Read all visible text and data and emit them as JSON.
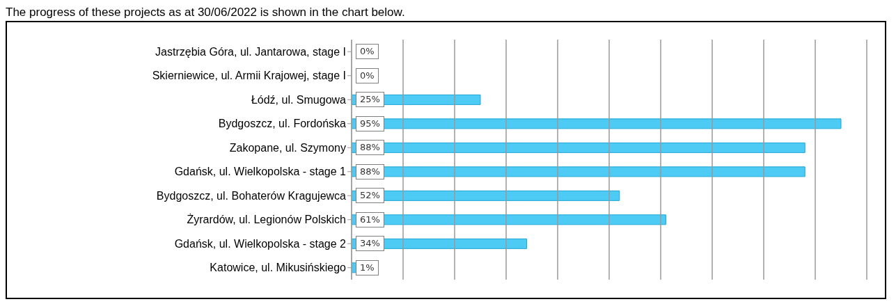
{
  "chart_data": {
    "type": "bar",
    "orientation": "horizontal",
    "title": "The progress of these projects as at 30/06/2022 is shown in the chart below.",
    "categories": [
      "Jastrzębia Góra, ul. Jantarowa, stage I",
      "Skierniewice, ul. Armii Krajowej, stage I",
      "Łódź, ul. Smugowa",
      "Bydgoszcz, ul. Fordońska",
      "Zakopane, ul. Szymony",
      "Gdańsk, ul. Wielkopolska - stage 1",
      "Bydgoszcz, ul. Bohaterów Kragujewca",
      "Żyrardów, ul. Legionów Polskich",
      "Gdańsk, ul. Wielkopolska - stage 2",
      "Katowice, ul. Mikusińskiego"
    ],
    "values": [
      0,
      0,
      25,
      95,
      88,
      88,
      52,
      61,
      34,
      1
    ],
    "value_labels": [
      "0%",
      "0%",
      "25%",
      "95%",
      "88%",
      "88%",
      "52%",
      "61%",
      "34%",
      "1%"
    ],
    "color": "#4dcbf5",
    "xlim": [
      0,
      100
    ],
    "xticks": [
      {
        "value": 0,
        "label": null
      },
      {
        "value": 10,
        "label": null
      },
      {
        "value": 20,
        "label": null
      },
      {
        "value": 30,
        "label": null
      },
      {
        "value": 40,
        "label": null
      },
      {
        "value": 50,
        "label": null
      },
      {
        "value": 60,
        "label": null
      },
      {
        "value": 70,
        "label": null
      },
      {
        "value": 80,
        "label": null
      },
      {
        "value": 90,
        "label": null
      },
      {
        "value": 100,
        "label": null
      }
    ],
    "grid": "x",
    "tick_labels": "y"
  }
}
